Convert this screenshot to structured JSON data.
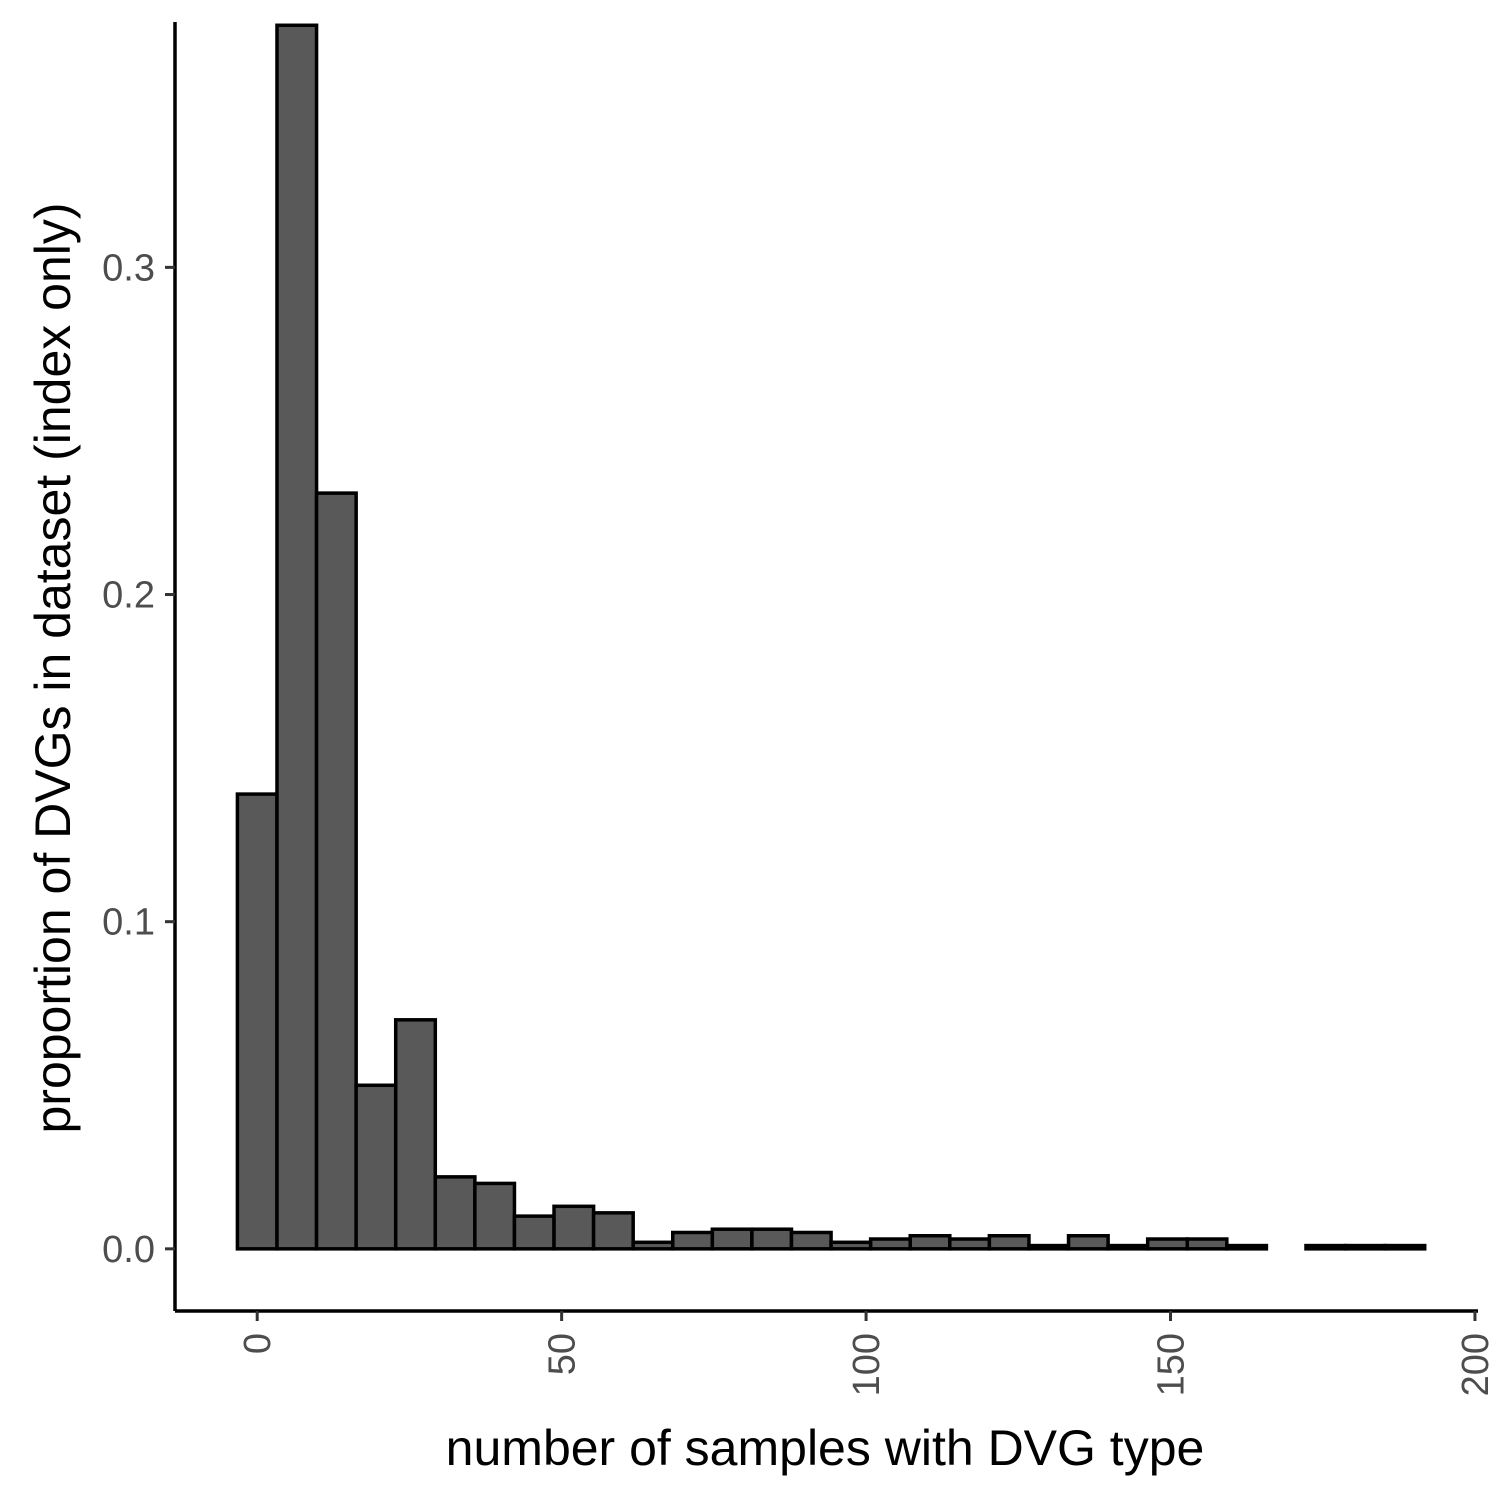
{
  "chart_data": {
    "type": "bar",
    "xlabel": "number of samples with DVG type",
    "ylabel": "proportion of DVGs in dataset (index only)",
    "bin_width": 6.5,
    "x_centers": [
      0,
      6.5,
      13,
      19.5,
      26,
      32.5,
      39,
      45.5,
      52,
      58.5,
      65,
      71.5,
      78,
      84.5,
      91,
      97.5,
      104,
      110.5,
      117,
      123.5,
      130,
      136.5,
      143,
      149.5,
      156,
      162.5,
      169,
      175.5,
      182,
      188.5
    ],
    "values": [
      0.139,
      0.374,
      0.231,
      0.05,
      0.07,
      0.022,
      0.02,
      0.01,
      0.013,
      0.011,
      0.002,
      0.005,
      0.006,
      0.006,
      0.005,
      0.002,
      0.003,
      0.004,
      0.003,
      0.004,
      0.001,
      0.004,
      0.001,
      0.003,
      0.003,
      0.001,
      0.0,
      0.001,
      0.001,
      0.001
    ],
    "xlim": [
      -13.5,
      200.5
    ],
    "ylim": [
      -0.019,
      0.375
    ],
    "x_ticks": [
      "0",
      "50",
      "100",
      "150",
      "200"
    ],
    "x_tick_values": [
      0,
      50,
      100,
      150,
      200
    ],
    "y_ticks": [
      "0.0",
      "0.1",
      "0.2",
      "0.3"
    ],
    "y_tick_values": [
      0,
      0.1,
      0.2,
      0.3
    ],
    "bar_fill": "#595959",
    "bar_stroke": "#000000",
    "grid": false,
    "legend": "none"
  }
}
